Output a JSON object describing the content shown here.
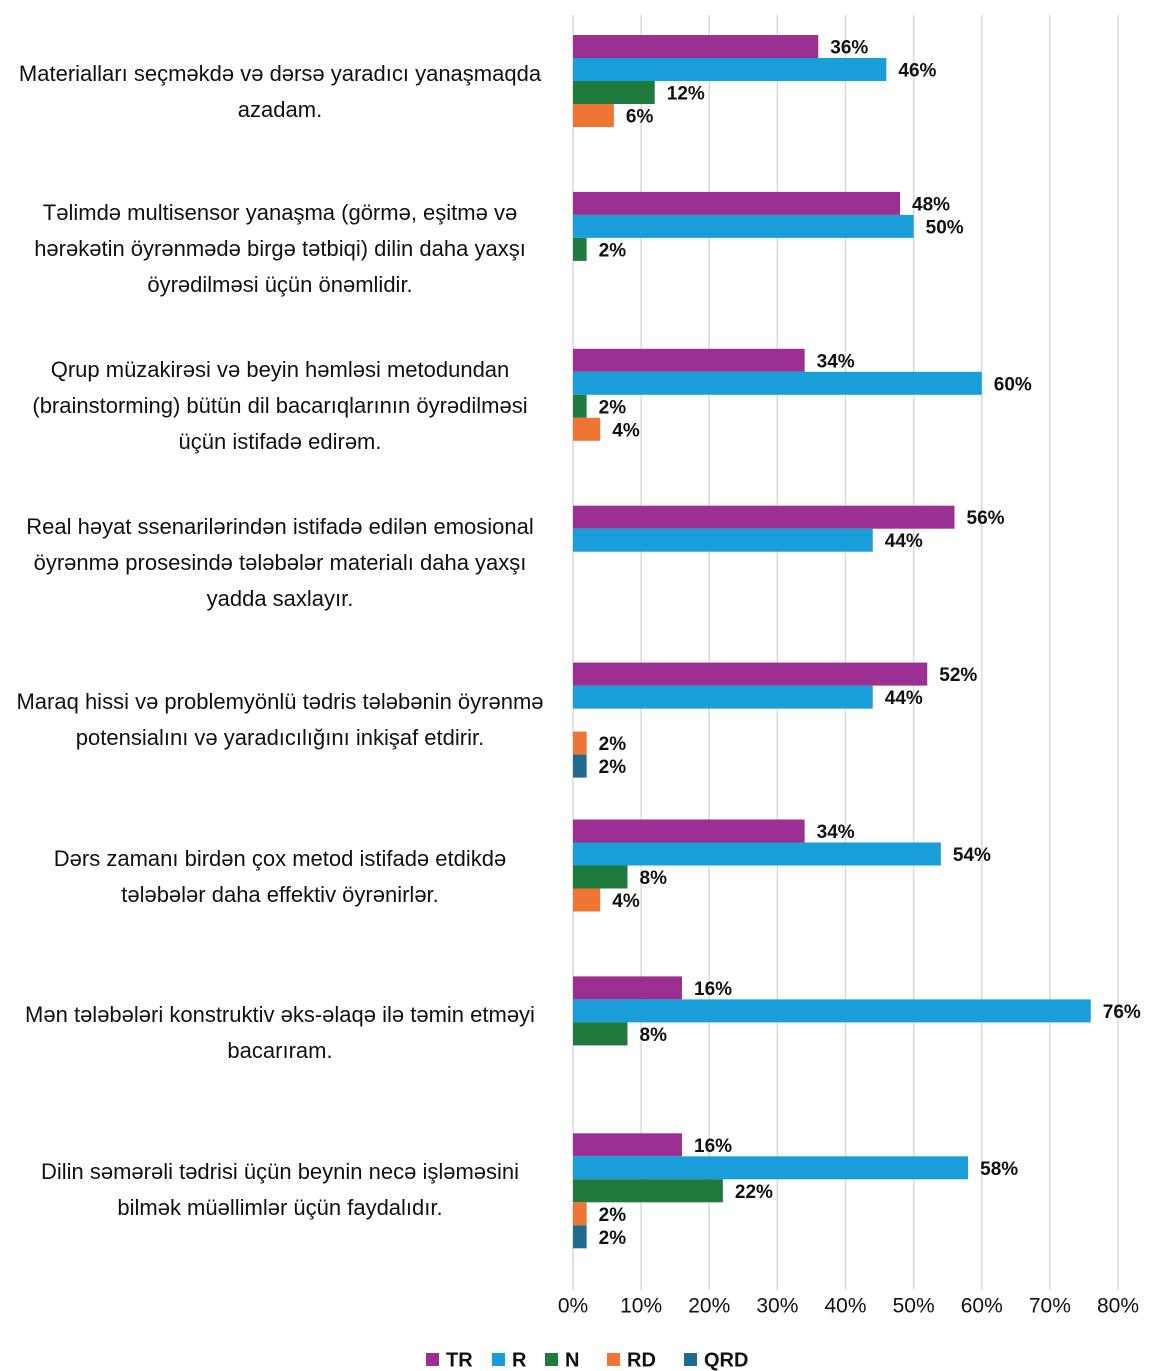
{
  "chart_data": {
    "type": "bar",
    "orientation": "horizontal",
    "categories": [
      "Materialları seçməkdə və dərsə yaradıcı yanaşmaqda azadam.",
      "Təlimdə multisensor yanaşma (görmə, eşitmə və hərəkətin öyrənmədə birgə tətbiqi) dilin daha yaxşı öyrədilməsi üçün önəmlidir.",
      "Qrup müzakirəsi və beyin həmləsi metodundan (brainstorming) bütün dil bacarıqlarının öyrədilməsi üçün istifadə edirəm.",
      "Real həyat ssenarilərindən istifadə edilən emosional öyrənmə  prosesində tələbələr materialı daha yaxşı yadda saxlayır.",
      "Maraq hissi və problemyönlü tədris tələbənin öyrənmə potensialını və yaradıcılığını inkişaf etdirir.",
      "Dərs zamanı birdən çox metod istifadə etdikdə tələbələr daha effektiv öyrənirlər.",
      "Mən tələbələri konstruktiv əks-əlaqə ilə təmin etməyi bacarıram.",
      "Dilin səmərəli tədrisi üçün beynin necə işləməsini bilmək müəllimlər üçün faydalıdır."
    ],
    "series": [
      {
        "name": "TR",
        "color": "#9b2f92",
        "values": [
          36,
          48,
          34,
          56,
          52,
          34,
          16,
          16
        ],
        "value_labels": [
          "36%",
          "48%",
          "34%",
          "56%",
          "52%",
          "34%",
          "16%",
          "16%"
        ]
      },
      {
        "name": "R",
        "color": "#1a9ed9",
        "values": [
          46,
          50,
          60,
          44,
          44,
          54,
          76,
          58
        ],
        "value_labels": [
          "46%",
          "50%",
          "60%",
          "44%",
          "44%",
          "54%",
          "76%",
          "58%"
        ]
      },
      {
        "name": "N",
        "color": "#1f7a3d",
        "values": [
          12,
          2,
          2,
          null,
          null,
          8,
          8,
          22
        ],
        "value_labels": [
          "12%",
          "2%",
          "2%",
          null,
          null,
          "8%",
          "8%",
          "22%"
        ]
      },
      {
        "name": "RD",
        "color": "#ee7533",
        "values": [
          6,
          null,
          4,
          null,
          2,
          4,
          null,
          2
        ],
        "value_labels": [
          "6%",
          null,
          "4%",
          null,
          "2%",
          "4%",
          null,
          "2%"
        ]
      },
      {
        "name": "QRD",
        "color": "#1f6b8e",
        "values": [
          null,
          null,
          null,
          null,
          2,
          null,
          null,
          2
        ],
        "value_labels": [
          null,
          null,
          null,
          null,
          "2%",
          null,
          null,
          "2%"
        ]
      }
    ],
    "xlim": [
      0,
      80
    ],
    "xticks": [
      {
        "value": 0,
        "label": "0%"
      },
      {
        "value": 10,
        "label": "10%"
      },
      {
        "value": 20,
        "label": "20%"
      },
      {
        "value": 30,
        "label": "30%"
      },
      {
        "value": 40,
        "label": "40%"
      },
      {
        "value": 50,
        "label": "50%"
      },
      {
        "value": 60,
        "label": "60%"
      },
      {
        "value": 70,
        "label": "70%"
      },
      {
        "value": 80,
        "label": "80%"
      }
    ],
    "grid": true,
    "legend": "bottom"
  }
}
